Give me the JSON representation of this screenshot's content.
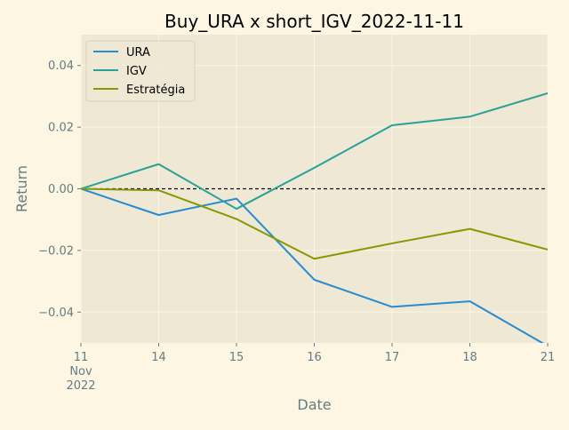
{
  "chart_data": {
    "type": "line",
    "title": "Buy_URA x short_IGV_2022-11-11",
    "xlabel": "Date",
    "ylabel": "Return",
    "x": [
      "2022-11-11",
      "2022-11-14",
      "2022-11-15",
      "2022-11-16",
      "2022-11-17",
      "2022-11-18",
      "2022-11-21"
    ],
    "x_tick_labels": [
      [
        "11",
        "Nov",
        "2022"
      ],
      [
        "14"
      ],
      [
        "15"
      ],
      [
        "16"
      ],
      [
        "17"
      ],
      [
        "18"
      ],
      [
        "21"
      ]
    ],
    "ylim": [
      -0.05,
      0.05
    ],
    "y_ticks": [
      -0.04,
      -0.02,
      0.0,
      0.02,
      0.04
    ],
    "y_tick_labels": [
      "−0.04",
      "−0.02",
      "0.00",
      "0.02",
      "0.04"
    ],
    "grid": true,
    "legend_position": "top-left",
    "zero_line": {
      "y": 0,
      "style": "dashed",
      "color": "#000000"
    },
    "series": [
      {
        "name": "URA",
        "color": "#268bd2",
        "values": [
          0.0,
          -0.0085,
          -0.0032,
          -0.0295,
          -0.0383,
          -0.0365,
          -0.051
        ]
      },
      {
        "name": "IGV",
        "color": "#2aa198",
        "values": [
          0.0,
          0.008,
          -0.0065,
          0.0068,
          0.0206,
          0.0234,
          0.031
        ]
      },
      {
        "name": "Estratégia",
        "color": "#859900",
        "values": [
          0.0,
          -0.0005,
          -0.0098,
          -0.0227,
          -0.0177,
          -0.013,
          -0.0197
        ]
      }
    ]
  },
  "colors": {
    "figure_bg": "#fdf6e3",
    "plot_bg": "#eee8d5",
    "grid": "#fdf6e3",
    "tick_text": "#657b83",
    "label_text": "#657b83",
    "title_text": "#000000"
  }
}
